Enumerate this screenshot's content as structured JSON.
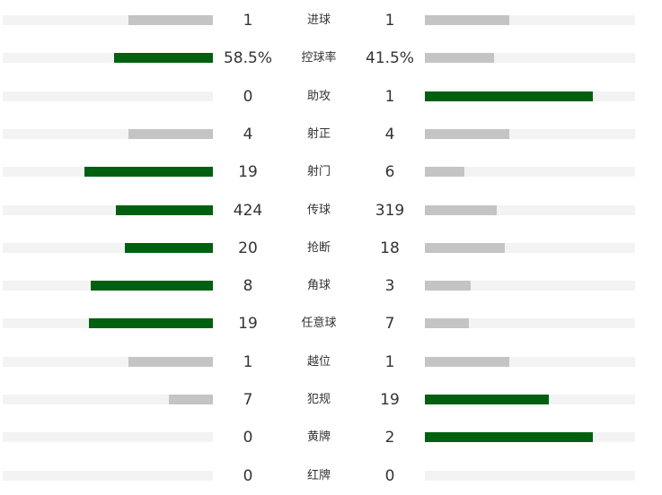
{
  "colors": {
    "lead": "#006010",
    "trail": "#c4c4c4",
    "track": "#f3f3f3"
  },
  "chart_data": {
    "type": "bar",
    "categories": [
      "进球",
      "控球率",
      "助攻",
      "射正",
      "射门",
      "传球",
      "抢断",
      "角球",
      "任意球",
      "越位",
      "犯规",
      "黄牌",
      "红牌"
    ],
    "series": [
      {
        "labels": [
          "1",
          "58.5%",
          "0",
          "4",
          "19",
          "424",
          "20",
          "8",
          "19",
          "1",
          "7",
          "0",
          "0"
        ],
        "values": [
          1,
          58.5,
          0,
          4,
          19,
          424,
          20,
          8,
          19,
          1,
          7,
          0,
          0
        ]
      },
      {
        "labels": [
          "1",
          "41.5%",
          "1",
          "4",
          "6",
          "319",
          "18",
          "3",
          "7",
          "1",
          "19",
          "2",
          "0"
        ],
        "values": [
          1,
          41.5,
          1,
          4,
          6,
          319,
          18,
          3,
          7,
          1,
          19,
          2,
          0
        ]
      }
    ],
    "bar_fraction": {
      "left": [
        0.4,
        0.47,
        0.0,
        0.4,
        0.61,
        0.46,
        0.42,
        0.58,
        0.59,
        0.4,
        0.21,
        0.0,
        0.0
      ],
      "right": [
        0.4,
        0.33,
        0.8,
        0.4,
        0.19,
        0.34,
        0.38,
        0.22,
        0.21,
        0.4,
        0.59,
        0.8,
        0.0
      ]
    }
  }
}
